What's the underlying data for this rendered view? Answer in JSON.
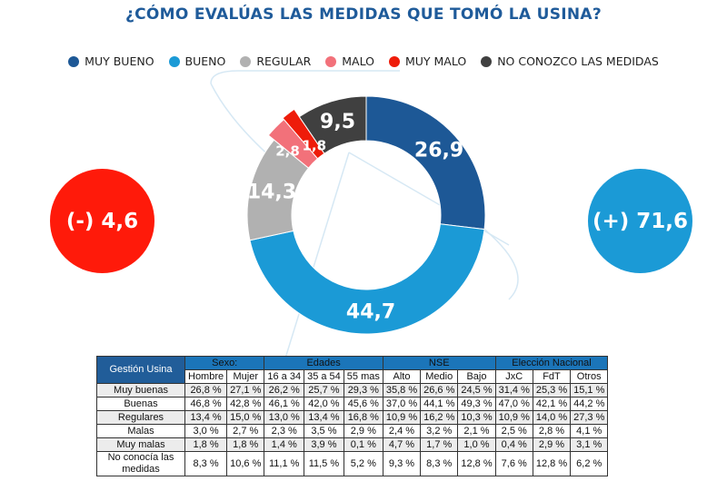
{
  "title": "¿CÓMO EVALÚAS LAS MEDIDAS QUE TOMÓ LA USINA?",
  "colors": {
    "muy_bueno": "#1d5896",
    "bueno": "#1b9ad6",
    "regular": "#b1b1b1",
    "malo": "#f2717a",
    "muy_malo": "#ee1c0a",
    "no_conozco": "#404040",
    "negative_bubble": "#ff1a0a",
    "positive_bubble": "#1b9ad6"
  },
  "chart_data": {
    "type": "pie",
    "variant": "donut",
    "title": "¿CÓMO EVALÚAS LAS MEDIDAS QUE TOMÓ LA USINA?",
    "legend_position": "top",
    "categories": [
      "MUY BUENO",
      "BUENO",
      "REGULAR",
      "MALO",
      "MUY MALO",
      "NO CONOZCO LAS MEDIDAS"
    ],
    "values": [
      26.9,
      44.7,
      14.3,
      2.8,
      1.8,
      9.5
    ],
    "value_labels": [
      "26,9",
      "44,7",
      "14,3",
      "2,8",
      "1,8",
      "9,5"
    ],
    "colors": [
      "#1d5896",
      "#1b9ad6",
      "#b1b1b1",
      "#f2717a",
      "#ee1c0a",
      "#404040"
    ]
  },
  "bubbles": {
    "negative": "(-) 4,6",
    "positive": "(+) 71,6"
  },
  "table": {
    "corner": "Gestión Usina",
    "groups": [
      {
        "label": "Sexo:",
        "span": 2
      },
      {
        "label": "Edades",
        "span": 3
      },
      {
        "label": "NSE",
        "span": 3
      },
      {
        "label": "Elección Nacional",
        "span": 3
      }
    ],
    "columns": [
      "Hombre",
      "Mujer",
      "16 a 34",
      "35 a 54",
      "55 mas",
      "Alto",
      "Medio",
      "Bajo",
      "JxC",
      "FdT",
      "Otros"
    ],
    "rows": [
      {
        "label": "Muy buenas",
        "values": [
          "26,8 %",
          "27,1 %",
          "26,2 %",
          "25,7 %",
          "29,3 %",
          "35,8 %",
          "26,6 %",
          "24,5 %",
          "31,4 %",
          "25,3 %",
          "15,1 %"
        ]
      },
      {
        "label": "Buenas",
        "values": [
          "46,8 %",
          "42,8 %",
          "46,1 %",
          "42,0 %",
          "45,6 %",
          "37,0 %",
          "44,1 %",
          "49,3 %",
          "47,0 %",
          "42,1 %",
          "44,2 %"
        ]
      },
      {
        "label": "Regulares",
        "values": [
          "13,4 %",
          "15,0 %",
          "13,0 %",
          "13,4 %",
          "16,8 %",
          "10,9 %",
          "16,2 %",
          "10,3 %",
          "10,9 %",
          "14,0 %",
          "27,3 %"
        ]
      },
      {
        "label": "Malas",
        "values": [
          "3,0 %",
          "2,7 %",
          "2,3 %",
          "3,5 %",
          "2,9 %",
          "2,4 %",
          "3,2 %",
          "2,1 %",
          "2,5 %",
          "2,8 %",
          "4,1 %"
        ]
      },
      {
        "label": "Muy malas",
        "values": [
          "1,8 %",
          "1,8 %",
          "1,4 %",
          "3,9 %",
          "0,1 %",
          "4,7 %",
          "1,7 %",
          "1,0 %",
          "0,4 %",
          "2,9 %",
          "3,1 %"
        ]
      },
      {
        "label": "No conocía las medidas",
        "values": [
          "8,3 %",
          "10,6 %",
          "11,1 %",
          "11,5 %",
          "5,2 %",
          "9,3 %",
          "8,3 %",
          "12,8 %",
          "7,6 %",
          "12,8 %",
          "6,2 %"
        ]
      }
    ]
  }
}
